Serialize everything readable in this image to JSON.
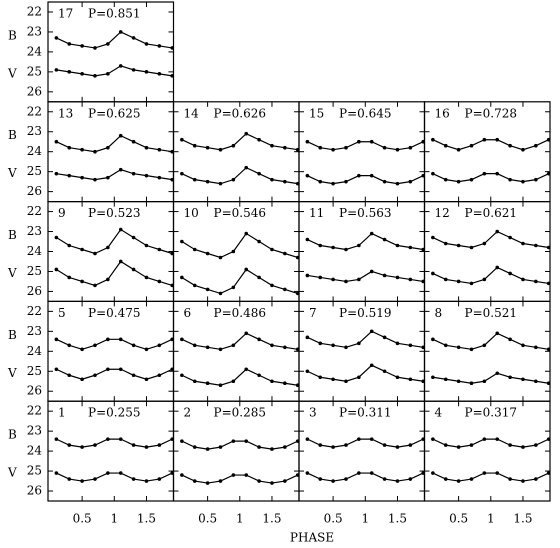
{
  "chart_data": {
    "type": "line",
    "x_label": "PHASE",
    "bands": [
      "B",
      "V"
    ],
    "x": [
      0.1,
      0.3,
      0.5,
      0.7,
      0.9,
      1.1,
      1.3,
      1.5,
      1.7,
      1.9
    ],
    "xlim": [
      -0.03,
      1.92
    ],
    "xticks": [
      0.5,
      1,
      1.5
    ],
    "ylim": [
      21.5,
      26.5
    ],
    "yticks": [
      22,
      23,
      24,
      25,
      26
    ],
    "y_inverted": true,
    "color": "#000000",
    "panels": [
      {
        "name": "17",
        "period": "P=0.851",
        "values": [
          [
            23.3,
            23.6,
            23.7,
            23.8,
            23.6,
            23.0,
            23.3,
            23.6,
            23.7,
            23.8
          ],
          [
            24.9,
            25.0,
            25.1,
            25.2,
            25.1,
            24.7,
            24.9,
            25.0,
            25.1,
            25.2
          ]
        ]
      },
      {
        "name": "13",
        "period": "P=0.625",
        "values": [
          [
            23.5,
            23.8,
            23.9,
            24.0,
            23.8,
            23.2,
            23.5,
            23.8,
            23.9,
            24.0
          ],
          [
            25.1,
            25.2,
            25.3,
            25.4,
            25.3,
            24.9,
            25.1,
            25.2,
            25.3,
            25.4
          ]
        ]
      },
      {
        "name": "14",
        "period": "P=0.626",
        "values": [
          [
            23.4,
            23.7,
            23.8,
            23.9,
            23.7,
            23.1,
            23.4,
            23.7,
            23.8,
            23.9
          ],
          [
            25.1,
            25.4,
            25.5,
            25.6,
            25.4,
            24.8,
            25.1,
            25.4,
            25.5,
            25.6
          ]
        ]
      },
      {
        "name": "15",
        "period": "P=0.645",
        "values": [
          [
            23.5,
            23.8,
            23.9,
            23.8,
            23.5,
            23.5,
            23.8,
            23.9,
            23.8,
            23.5
          ],
          [
            25.2,
            25.5,
            25.6,
            25.5,
            25.2,
            25.2,
            25.5,
            25.6,
            25.5,
            25.2
          ]
        ]
      },
      {
        "name": "16",
        "period": "P=0.728",
        "values": [
          [
            23.4,
            23.7,
            23.9,
            23.7,
            23.4,
            23.4,
            23.7,
            23.9,
            23.7,
            23.4
          ],
          [
            25.1,
            25.4,
            25.5,
            25.4,
            25.1,
            25.1,
            25.4,
            25.5,
            25.4,
            25.1
          ]
        ]
      },
      {
        "name": "9",
        "period": "P=0.523",
        "values": [
          [
            23.3,
            23.7,
            23.9,
            24.1,
            23.8,
            22.9,
            23.3,
            23.7,
            23.9,
            24.1
          ],
          [
            24.9,
            25.3,
            25.5,
            25.7,
            25.4,
            24.5,
            24.9,
            25.3,
            25.5,
            25.7
          ]
        ]
      },
      {
        "name": "10",
        "period": "P=0.546",
        "values": [
          [
            23.5,
            23.9,
            24.1,
            24.3,
            24.0,
            23.1,
            23.5,
            23.9,
            24.1,
            24.3
          ],
          [
            25.3,
            25.7,
            25.9,
            26.1,
            25.8,
            24.9,
            25.3,
            25.7,
            25.9,
            26.1
          ]
        ]
      },
      {
        "name": "11",
        "period": "P=0.563",
        "values": [
          [
            23.4,
            23.7,
            23.8,
            23.9,
            23.7,
            23.1,
            23.4,
            23.7,
            23.8,
            23.9
          ],
          [
            25.2,
            25.3,
            25.4,
            25.5,
            25.4,
            25.0,
            25.2,
            25.3,
            25.4,
            25.5
          ]
        ]
      },
      {
        "name": "12",
        "period": "P=0.621",
        "values": [
          [
            23.3,
            23.6,
            23.7,
            23.8,
            23.6,
            23.0,
            23.3,
            23.6,
            23.7,
            23.8
          ],
          [
            25.1,
            25.4,
            25.5,
            25.6,
            25.4,
            24.8,
            25.1,
            25.4,
            25.5,
            25.6
          ]
        ]
      },
      {
        "name": "5",
        "period": "P=0.475",
        "values": [
          [
            23.4,
            23.7,
            23.9,
            23.7,
            23.4,
            23.4,
            23.7,
            23.9,
            23.7,
            23.4
          ],
          [
            24.9,
            25.2,
            25.4,
            25.2,
            24.9,
            24.9,
            25.2,
            25.4,
            25.2,
            24.9
          ]
        ]
      },
      {
        "name": "6",
        "period": "P=0.486",
        "values": [
          [
            23.4,
            23.7,
            23.8,
            23.9,
            23.7,
            23.1,
            23.4,
            23.7,
            23.8,
            23.9
          ],
          [
            25.2,
            25.5,
            25.6,
            25.7,
            25.5,
            24.9,
            25.2,
            25.5,
            25.6,
            25.7
          ]
        ]
      },
      {
        "name": "7",
        "period": "P=0.519",
        "values": [
          [
            23.3,
            23.6,
            23.7,
            23.8,
            23.6,
            23.0,
            23.3,
            23.6,
            23.7,
            23.8
          ],
          [
            25.0,
            25.3,
            25.4,
            25.5,
            25.3,
            24.7,
            25.0,
            25.3,
            25.4,
            25.5
          ]
        ]
      },
      {
        "name": "8",
        "period": "P=0.521",
        "values": [
          [
            23.4,
            23.7,
            23.8,
            23.9,
            23.7,
            23.1,
            23.4,
            23.7,
            23.8,
            23.9
          ],
          [
            25.3,
            25.4,
            25.5,
            25.6,
            25.5,
            25.1,
            25.3,
            25.4,
            25.5,
            25.6
          ]
        ]
      },
      {
        "name": "1",
        "period": "P=0.255",
        "values": [
          [
            23.4,
            23.7,
            23.8,
            23.7,
            23.4,
            23.4,
            23.7,
            23.8,
            23.7,
            23.4
          ],
          [
            25.1,
            25.4,
            25.5,
            25.4,
            25.1,
            25.1,
            25.4,
            25.5,
            25.4,
            25.1
          ]
        ]
      },
      {
        "name": "2",
        "period": "P=0.285",
        "values": [
          [
            23.5,
            23.8,
            23.9,
            23.8,
            23.5,
            23.5,
            23.8,
            23.9,
            23.8,
            23.5
          ],
          [
            25.2,
            25.5,
            25.6,
            25.5,
            25.2,
            25.2,
            25.5,
            25.6,
            25.5,
            25.2
          ]
        ]
      },
      {
        "name": "3",
        "period": "P=0.311",
        "values": [
          [
            23.4,
            23.7,
            23.8,
            23.7,
            23.4,
            23.4,
            23.7,
            23.8,
            23.7,
            23.4
          ],
          [
            25.1,
            25.4,
            25.5,
            25.4,
            25.1,
            25.1,
            25.4,
            25.5,
            25.4,
            25.1
          ]
        ]
      },
      {
        "name": "4",
        "period": "P=0.317",
        "values": [
          [
            23.4,
            23.7,
            23.8,
            23.7,
            23.4,
            23.4,
            23.7,
            23.8,
            23.7,
            23.4
          ],
          [
            25.1,
            25.4,
            25.5,
            25.4,
            25.1,
            25.1,
            25.4,
            25.5,
            25.4,
            25.1
          ]
        ]
      }
    ]
  }
}
